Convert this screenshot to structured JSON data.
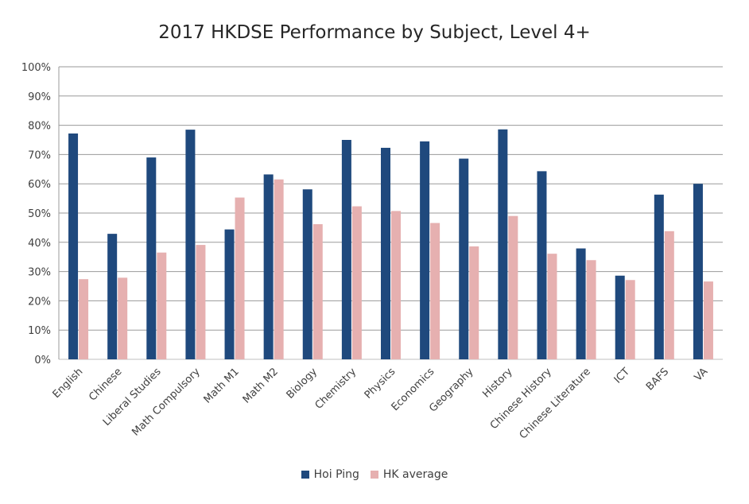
{
  "chart_data": {
    "type": "bar",
    "title": "2017 HKDSE Performance by Subject, Level 4+",
    "xlabel": "",
    "ylabel": "",
    "ylim": [
      0,
      100
    ],
    "yticks": [
      0,
      10,
      20,
      30,
      40,
      50,
      60,
      70,
      80,
      90,
      100
    ],
    "ytick_labels": [
      "0%",
      "10%",
      "20%",
      "30%",
      "40%",
      "50%",
      "60%",
      "70%",
      "80%",
      "90%",
      "100%"
    ],
    "grid": true,
    "legend_position": "bottom",
    "categories": [
      "English",
      "Chinese",
      "Liberal Studies",
      "Math Compulsory",
      "Math M1",
      "Math M2",
      "Biology",
      "Chemistry",
      "Physics",
      "Economics",
      "Geography",
      "History",
      "Chinese History",
      "Chinese Literature",
      "ICT",
      "BAFS",
      "VA"
    ],
    "series": [
      {
        "name": "Hoi Ping",
        "color": "#1f497d",
        "values": [
          77.2,
          42.9,
          69.0,
          78.5,
          44.4,
          63.2,
          58.1,
          75.0,
          72.3,
          74.5,
          68.6,
          78.6,
          64.3,
          37.9,
          28.6,
          56.3,
          60.0
        ]
      },
      {
        "name": "HK average",
        "color": "#e6b0b0",
        "values": [
          27.4,
          27.9,
          36.5,
          39.1,
          55.3,
          61.5,
          46.2,
          52.3,
          50.7,
          46.6,
          38.6,
          49.0,
          36.1,
          33.9,
          27.1,
          43.8,
          26.6
        ]
      }
    ]
  }
}
